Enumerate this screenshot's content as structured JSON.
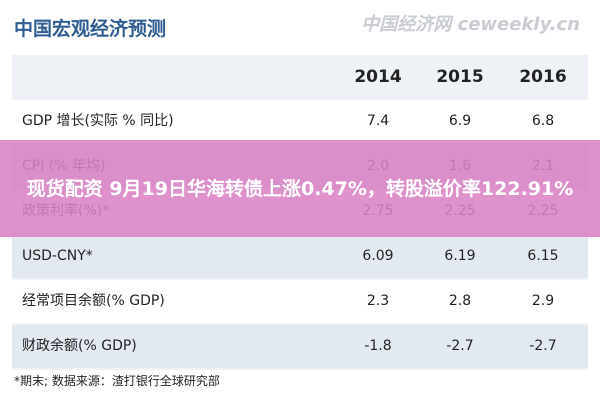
{
  "header": {
    "title": "中国宏观经济预测",
    "watermark": "中国经济网 ceweekly.cn"
  },
  "table": {
    "columns": [
      "2014",
      "2015",
      "2016"
    ],
    "rows": [
      [
        "GDP 增长(实际 % 同比)",
        "7.4",
        "6.9",
        "6.8"
      ],
      [
        "CPI (% 年均)",
        "2.0",
        "1.6",
        "2.1"
      ],
      [
        "政策利率(%)*",
        "2.75",
        "2.25",
        "2.25"
      ],
      [
        "USD-CNY*",
        "6.09",
        "6.19",
        "6.15"
      ],
      [
        "经常项目余额(% GDP)",
        "2.3",
        "2.8",
        "2.9"
      ],
      [
        "财政余额(% GDP)",
        "-1.8",
        "-2.7",
        "-2.7"
      ]
    ]
  },
  "footnote": "*期末;    数据来源：渣打银行全球研究部",
  "banner": "现货配资 9月19日华海转债上涨0.47%，转股溢价率122.91%"
}
